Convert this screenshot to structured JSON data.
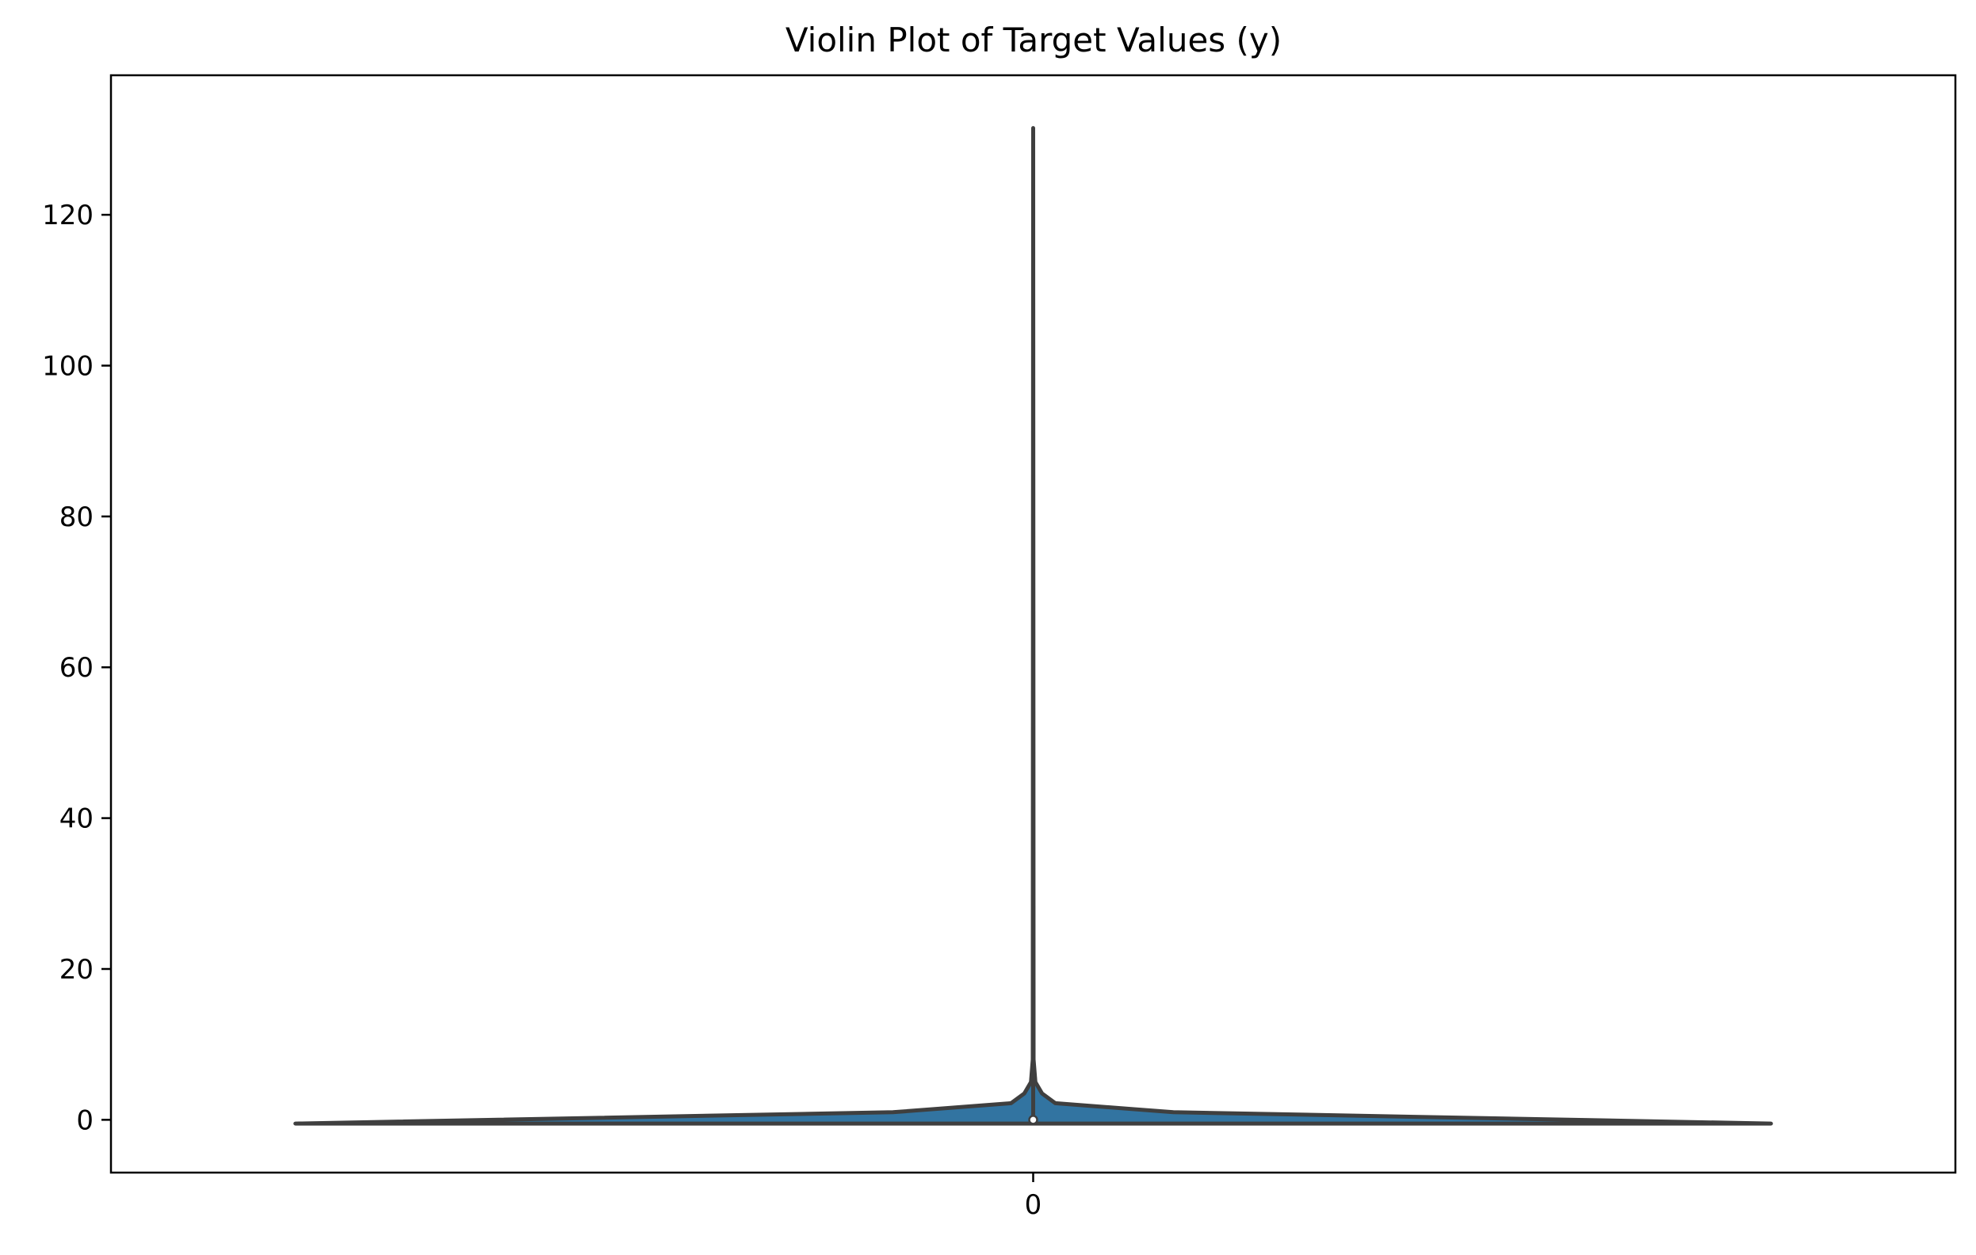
{
  "chart_data": {
    "type": "violin",
    "title": "Violin Plot of Target Values (y)",
    "xlabel": "",
    "ylabel": "",
    "categories": [
      "0"
    ],
    "ylim": [
      -7,
      138.5
    ],
    "y_ticks": [
      0,
      20,
      40,
      60,
      80,
      100,
      120
    ],
    "grid": false,
    "legend": "none",
    "colors": {
      "fill": "#3274a1",
      "outline": "#3f3f3f",
      "median_marker": "#ffffff"
    },
    "violin": {
      "category": "0",
      "min": -0.5,
      "max": 131.5,
      "median": 0,
      "density_profile": [
        {
          "y": -0.5,
          "relative_width": 1.0
        },
        {
          "y": 1.0,
          "relative_width": 0.19
        },
        {
          "y": 2.2,
          "relative_width": 0.03
        },
        {
          "y": 3.5,
          "relative_width": 0.012
        },
        {
          "y": 5.0,
          "relative_width": 0.003
        },
        {
          "y": 8.0,
          "relative_width": 0.0005
        },
        {
          "y": 131.5,
          "relative_width": 0.0
        }
      ]
    }
  }
}
